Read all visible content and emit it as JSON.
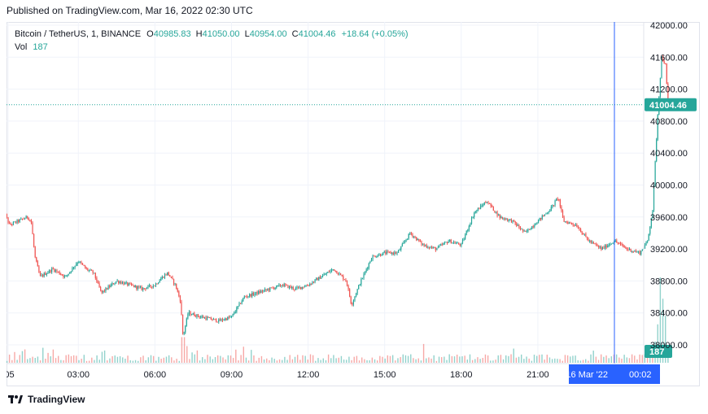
{
  "header": {
    "published": "Published on TradingView.com, Mar 16, 2022 02:30 UTC"
  },
  "legend": {
    "symbol": "Bitcoin / TetherUS, 1, BINANCE",
    "open_label": "O",
    "open": "40985.83",
    "high_label": "H",
    "high": "41050.00",
    "low_label": "L",
    "low": "40954.00",
    "close_label": "C",
    "close": "41004.46",
    "change": "+18.64 (+0.05%)",
    "vol_label": "Vol",
    "vol": "187"
  },
  "footer": {
    "brand": "TradingView"
  },
  "colors": {
    "up": "#26a69a",
    "down": "#ef5350",
    "crosshair": "#2962ff",
    "grid": "#f0f3fa"
  },
  "chart_data": {
    "type": "candlestick",
    "y_ticks": [
      "42000.00",
      "41600.00",
      "41200.00",
      "40800.00",
      "40400.00",
      "40000.00",
      "39600.00",
      "39200.00",
      "38800.00",
      "38400.00",
      "38000.00"
    ],
    "ylim": [
      37750,
      42200
    ],
    "x_ticks": [
      ":05",
      "03:00",
      "06:00",
      "09:00",
      "12:00",
      "15:00",
      "18:00",
      "21:00",
      "00:02"
    ],
    "x_tick_hours": [
      0.25,
      3,
      6,
      9,
      12,
      15,
      18,
      21,
      24
    ],
    "crosshair_label": "16 Mar '22",
    "crosshair_time": "00:02",
    "crosshair_hour": 24.0,
    "last_price_label": "41004.46",
    "last_price": 41004.46,
    "volume_label": "187",
    "price_path": [
      [
        0.0,
        39750
      ],
      [
        0.3,
        39500
      ],
      [
        1.0,
        39600
      ],
      [
        1.15,
        39550
      ],
      [
        1.3,
        39100
      ],
      [
        1.5,
        38850
      ],
      [
        2.0,
        38950
      ],
      [
        2.5,
        38850
      ],
      [
        3.0,
        39050
      ],
      [
        3.3,
        38950
      ],
      [
        3.6,
        38900
      ],
      [
        3.9,
        38650
      ],
      [
        4.5,
        38800
      ],
      [
        5.0,
        38750
      ],
      [
        5.5,
        38700
      ],
      [
        6.0,
        38750
      ],
      [
        6.3,
        38850
      ],
      [
        6.5,
        38900
      ],
      [
        6.8,
        38750
      ],
      [
        7.0,
        38550
      ],
      [
        7.1,
        38100
      ],
      [
        7.3,
        38400
      ],
      [
        7.8,
        38350
      ],
      [
        8.5,
        38300
      ],
      [
        9.0,
        38350
      ],
      [
        9.5,
        38600
      ],
      [
        10.0,
        38650
      ],
      [
        10.5,
        38700
      ],
      [
        11.0,
        38750
      ],
      [
        11.5,
        38700
      ],
      [
        12.0,
        38750
      ],
      [
        12.5,
        38850
      ],
      [
        13.0,
        38950
      ],
      [
        13.5,
        38800
      ],
      [
        13.7,
        38500
      ],
      [
        14.0,
        38750
      ],
      [
        14.5,
        39100
      ],
      [
        15.0,
        39150
      ],
      [
        15.5,
        39150
      ],
      [
        16.0,
        39400
      ],
      [
        16.5,
        39250
      ],
      [
        17.0,
        39200
      ],
      [
        17.5,
        39300
      ],
      [
        18.0,
        39250
      ],
      [
        18.5,
        39650
      ],
      [
        19.0,
        39800
      ],
      [
        19.5,
        39600
      ],
      [
        20.0,
        39550
      ],
      [
        20.5,
        39400
      ],
      [
        21.0,
        39550
      ],
      [
        21.5,
        39700
      ],
      [
        21.8,
        39850
      ],
      [
        22.0,
        39550
      ],
      [
        22.5,
        39500
      ],
      [
        23.0,
        39300
      ],
      [
        23.5,
        39200
      ],
      [
        24.0,
        39300
      ],
      [
        24.5,
        39200
      ],
      [
        25.0,
        39150
      ],
      [
        25.3,
        39300
      ],
      [
        25.5,
        39700
      ],
      [
        25.7,
        40900
      ],
      [
        25.85,
        41600
      ],
      [
        26.0,
        41500
      ],
      [
        26.1,
        41004.46
      ]
    ],
    "volume_spikes": [
      [
        7.1,
        0.3
      ],
      [
        16.5,
        0.22
      ],
      [
        25.6,
        0.25
      ],
      [
        25.7,
        0.45
      ],
      [
        25.8,
        1.0
      ],
      [
        25.9,
        0.75
      ],
      [
        26.0,
        0.55
      ]
    ]
  }
}
